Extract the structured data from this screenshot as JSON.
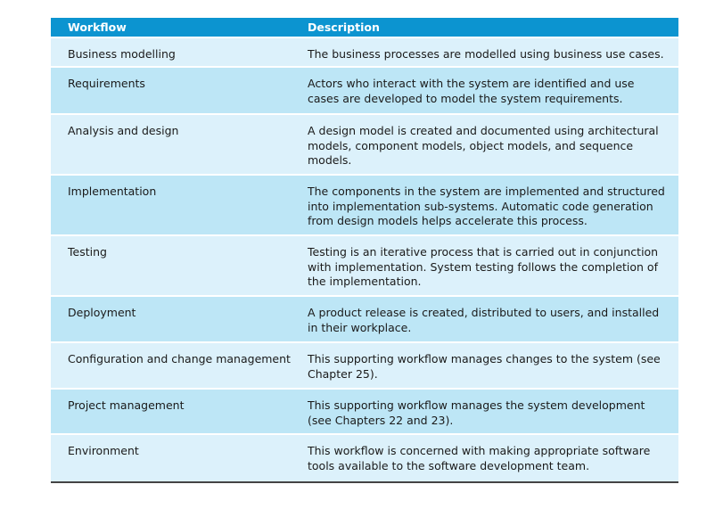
{
  "table": {
    "headers": [
      "Workflow",
      "Description"
    ],
    "rows": [
      {
        "workflow": "Business modelling",
        "description": "The business processes are modelled using business use cases."
      },
      {
        "workflow": "Requirements",
        "description": "Actors who interact with the system are identified and use cases are developed to model the system requirements."
      },
      {
        "workflow": "Analysis and design",
        "description": "A design model is created and documented using architectural models, component models, object models, and sequence models."
      },
      {
        "workflow": "Implementation",
        "description": "The components in the system are implemented and structured into implementation sub-systems. Automatic code generation from design models helps accelerate this process."
      },
      {
        "workflow": "Testing",
        "description": "Testing is an iterative process that is carried out in conjunction with implementation. System testing follows the completion of the implementation."
      },
      {
        "workflow": "Deployment",
        "description": "A product release is created, distributed to users, and installed in their workplace."
      },
      {
        "workflow": "Configuration and change management",
        "description": "This supporting workflow manages changes to the system (see Chapter 25)."
      },
      {
        "workflow": "Project management",
        "description": "This supporting workflow manages the system development (see Chapters 22 and 23)."
      },
      {
        "workflow": "Environment",
        "description": "This workflow is concerned with making appropriate software tools available to the software development team."
      }
    ]
  },
  "colors": {
    "header_bg": "#0c94d0",
    "row_light": "#dcf1fb",
    "row_dark": "#bde6f6"
  }
}
